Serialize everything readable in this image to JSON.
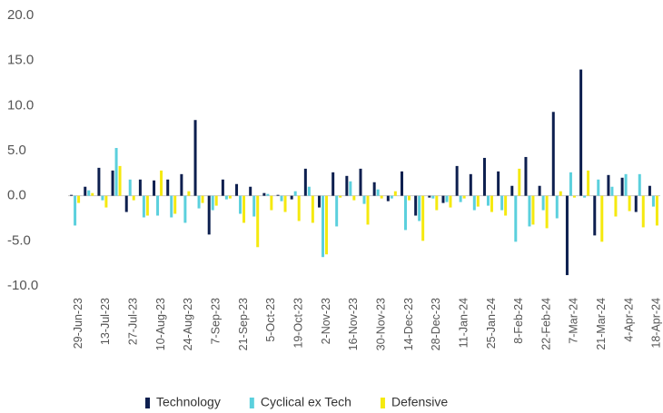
{
  "chart_data": {
    "type": "bar",
    "categories": [
      "29-Jun-23",
      null,
      "13-Jul-23",
      null,
      "27-Jul-23",
      null,
      "10-Aug-23",
      null,
      "24-Aug-23",
      null,
      "7-Sep-23",
      null,
      "21-Sep-23",
      null,
      "5-Oct-23",
      null,
      "19-Oct-23",
      null,
      "2-Nov-23",
      null,
      "16-Nov-23",
      null,
      "30-Nov-23",
      null,
      "14-Dec-23",
      null,
      "28-Dec-23",
      null,
      "11-Jan-24",
      null,
      "25-Jan-24",
      null,
      "8-Feb-24",
      null,
      "22-Feb-24",
      null,
      "7-Mar-24",
      null,
      "21-Mar-24",
      null,
      "4-Apr-24",
      null,
      "18-Apr-24"
    ],
    "series": [
      {
        "name": "Technology",
        "color": "#0d1f4f",
        "values": [
          0.1,
          1.0,
          3.1,
          2.8,
          -1.8,
          1.8,
          1.7,
          1.8,
          2.4,
          8.4,
          -4.3,
          1.8,
          1.3,
          1.0,
          0.3,
          0.1,
          -0.4,
          3.0,
          -1.3,
          2.6,
          2.2,
          3.0,
          1.5,
          -0.6,
          2.7,
          -2.2,
          -0.2,
          -0.8,
          3.3,
          2.4,
          4.2,
          2.7,
          1.1,
          4.3,
          1.1,
          9.3,
          -8.8,
          14.0,
          -4.4,
          2.3,
          2.0,
          -1.8,
          1.1
        ]
      },
      {
        "name": "Cyclical ex Tech",
        "color": "#5bd0dd",
        "values": [
          -3.3,
          0.6,
          -0.5,
          5.3,
          1.8,
          -2.4,
          -2.2,
          -2.4,
          -3.0,
          -1.4,
          -1.6,
          -0.4,
          -2.0,
          -2.3,
          0.2,
          -0.6,
          0.5,
          1.0,
          -6.8,
          -3.4,
          1.6,
          -0.9,
          0.7,
          -0.3,
          -3.8,
          -2.8,
          -0.3,
          -0.7,
          -0.7,
          -1.6,
          -1.1,
          -1.6,
          -5.1,
          -3.4,
          -1.6,
          -2.5,
          2.6,
          -0.2,
          1.8,
          1.0,
          2.4,
          2.4,
          -1.2
        ]
      },
      {
        "name": "Defensive",
        "color": "#f5e90f",
        "values": [
          -0.8,
          0.3,
          -1.3,
          3.3,
          -0.5,
          -2.2,
          2.8,
          -2.0,
          0.5,
          -0.8,
          -1.1,
          -0.3,
          -3.0,
          -5.7,
          -1.6,
          -1.8,
          -2.8,
          -3.0,
          -6.5,
          -0.2,
          -0.5,
          -3.2,
          -0.3,
          0.5,
          -0.5,
          -5.0,
          -1.6,
          -1.3,
          -0.3,
          -1.2,
          -1.8,
          -2.2,
          3.0,
          -3.2,
          -3.6,
          0.5,
          -0.2,
          2.8,
          -5.1,
          -2.3,
          -1.7,
          -3.5,
          -3.3
        ]
      }
    ],
    "ylim": [
      -10,
      20
    ],
    "yticks": [
      {
        "value": -10,
        "label": "-10.0"
      },
      {
        "value": -5,
        "label": "-5.0"
      },
      {
        "value": 0,
        "label": "0.0"
      },
      {
        "value": 5,
        "label": "5.0"
      },
      {
        "value": 10,
        "label": "10.0"
      },
      {
        "value": 15,
        "label": "15.0"
      },
      {
        "value": 20,
        "label": "20.0"
      }
    ],
    "legend": "bottom"
  }
}
